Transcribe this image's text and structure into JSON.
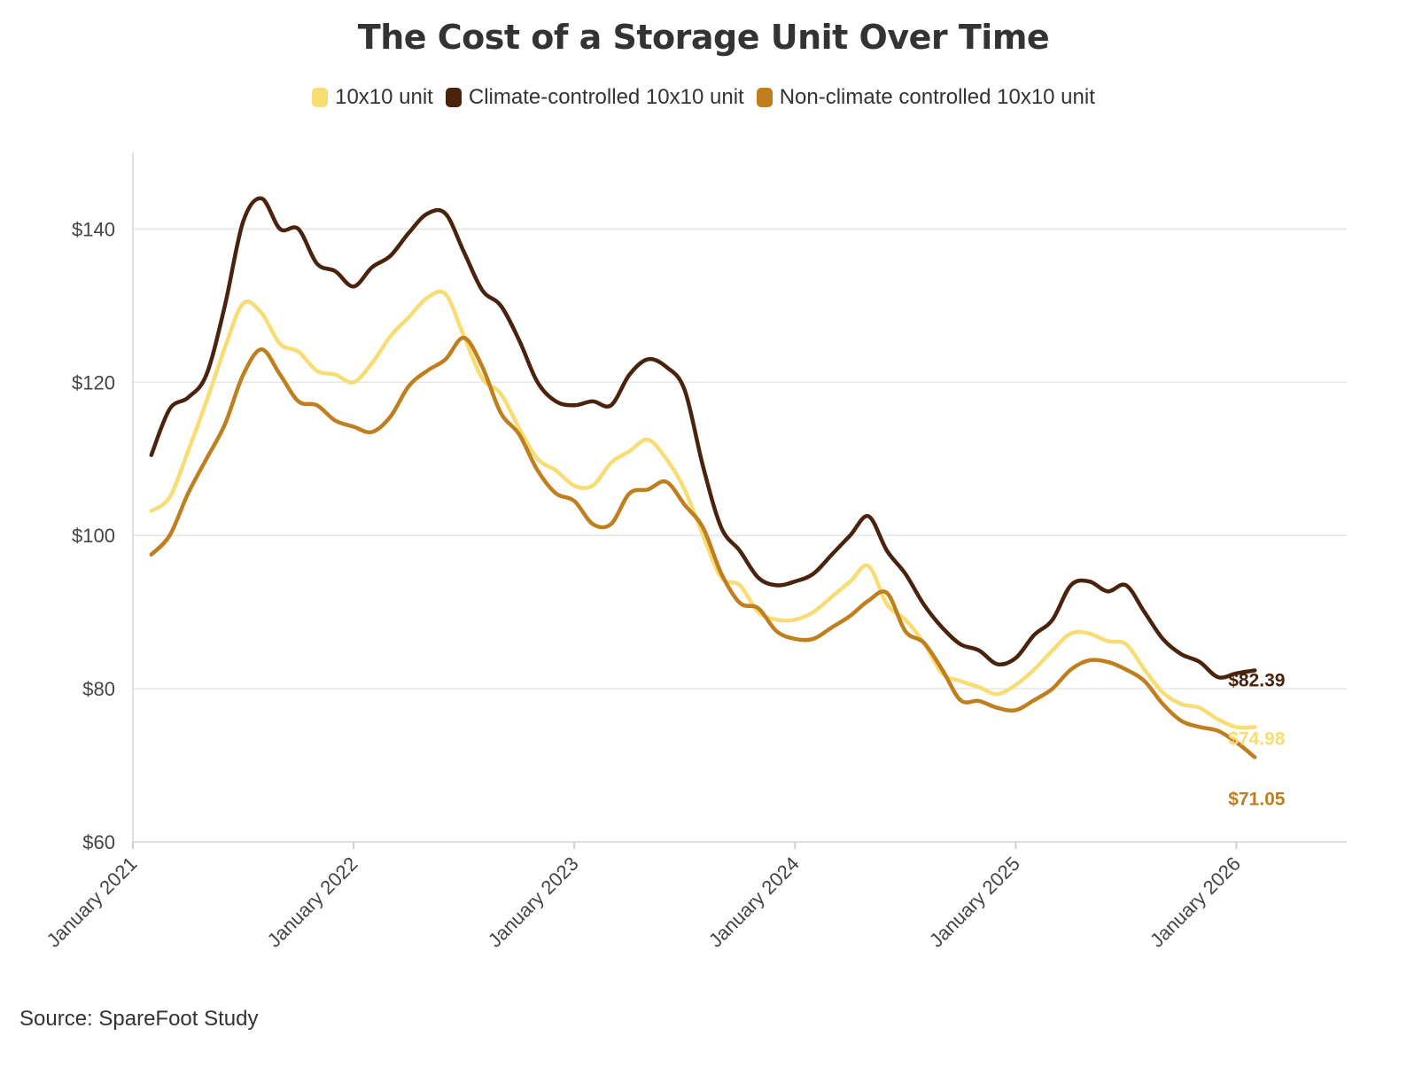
{
  "chart_data": {
    "type": "line",
    "title": "The Cost of a Storage Unit Over Time",
    "source": "Source: SpareFoot Study",
    "xlabel": "",
    "ylabel": "",
    "ylim": [
      60,
      150
    ],
    "y_ticks": [
      60,
      80,
      100,
      120,
      140
    ],
    "y_tick_labels": [
      "$60",
      "$80",
      "$100",
      "$120",
      "$140"
    ],
    "xlim": [
      "2021-01",
      "2026-07"
    ],
    "x_ticks": [
      "2021-01",
      "2022-01",
      "2023-01",
      "2024-01",
      "2025-01",
      "2026-01"
    ],
    "x_tick_labels": [
      "January 2021",
      "January 2022",
      "January 2023",
      "January 2024",
      "January 2025",
      "January 2026"
    ],
    "grid": "horizontal",
    "legend_position": "top-center",
    "x": [
      "2021-02",
      "2021-03",
      "2021-04",
      "2021-05",
      "2021-06",
      "2021-07",
      "2021-08",
      "2021-09",
      "2021-10",
      "2021-11",
      "2021-12",
      "2022-01",
      "2022-02",
      "2022-03",
      "2022-04",
      "2022-05",
      "2022-06",
      "2022-07",
      "2022-08",
      "2022-09",
      "2022-10",
      "2022-11",
      "2022-12",
      "2023-01",
      "2023-02",
      "2023-03",
      "2023-04",
      "2023-05",
      "2023-06",
      "2023-07",
      "2023-08",
      "2023-09",
      "2023-10",
      "2023-11",
      "2023-12",
      "2024-01",
      "2024-02",
      "2024-03",
      "2024-04",
      "2024-05",
      "2024-06",
      "2024-07",
      "2024-08",
      "2024-09",
      "2024-10",
      "2024-11",
      "2024-12",
      "2025-01",
      "2025-02",
      "2025-03",
      "2025-04",
      "2025-05",
      "2025-06",
      "2025-07",
      "2025-08",
      "2025-09",
      "2025-10",
      "2025-11",
      "2025-12",
      "2026-01",
      "2026-02"
    ],
    "series": [
      {
        "name": "10x10 unit",
        "color": "#f7dd73",
        "end_label": "$74.98",
        "values": [
          103.2,
          105,
          111,
          117.5,
          124.5,
          130.3,
          129,
          125,
          124,
          121.5,
          121,
          120,
          122.5,
          126,
          128.5,
          131,
          131.5,
          126,
          120.5,
          118.5,
          114,
          110,
          108.5,
          106.5,
          106.5,
          109.5,
          111,
          112.5,
          110,
          106,
          100,
          94.5,
          93.5,
          90,
          89,
          89,
          90,
          92,
          94,
          96,
          91,
          89,
          86,
          82,
          81,
          80.2,
          79.3,
          80.5,
          82.5,
          85,
          87.2,
          87.2,
          86.2,
          85.8,
          82.5,
          79.5,
          78,
          77.5,
          76,
          74.98,
          74.98
        ]
      },
      {
        "name": "Climate-controlled 10x10 unit",
        "color": "#4a230d",
        "end_label": "$82.39",
        "values": [
          110.5,
          116.5,
          118,
          121,
          130,
          141,
          144,
          140,
          140,
          135.5,
          134.5,
          132.5,
          135,
          136.5,
          139.5,
          142,
          142,
          137,
          132,
          130,
          125.5,
          120,
          117.5,
          117,
          117.5,
          117,
          121,
          123,
          122,
          119,
          109,
          101,
          98,
          94.5,
          93.5,
          94,
          95,
          97.5,
          100,
          102.5,
          98,
          95,
          91,
          88,
          85.8,
          85,
          83.2,
          84,
          87,
          89,
          93.5,
          94,
          92.7,
          93.5,
          90,
          86.5,
          84.5,
          83.5,
          81.5,
          82,
          82.39
        ]
      },
      {
        "name": "Non-climate controlled 10x10 unit",
        "color": "#c07f1f",
        "end_label": "$71.05",
        "values": [
          97.5,
          100,
          105.5,
          110,
          114.5,
          121,
          124.3,
          121,
          117.5,
          117,
          115,
          114.2,
          113.5,
          115.5,
          119.5,
          121.5,
          123,
          125.8,
          122,
          116,
          113.2,
          108.5,
          105.5,
          104.5,
          101.5,
          101.5,
          105.5,
          106,
          107,
          104,
          101,
          95,
          91.2,
          90.5,
          87.5,
          86.5,
          86.5,
          88,
          89.5,
          91.5,
          92.5,
          87.5,
          86,
          82.5,
          78.5,
          78.4,
          77.5,
          77.2,
          78.5,
          80,
          82.5,
          83.7,
          83.5,
          82.5,
          81,
          78,
          75.8,
          75,
          74.5,
          73,
          71.05
        ]
      }
    ]
  }
}
